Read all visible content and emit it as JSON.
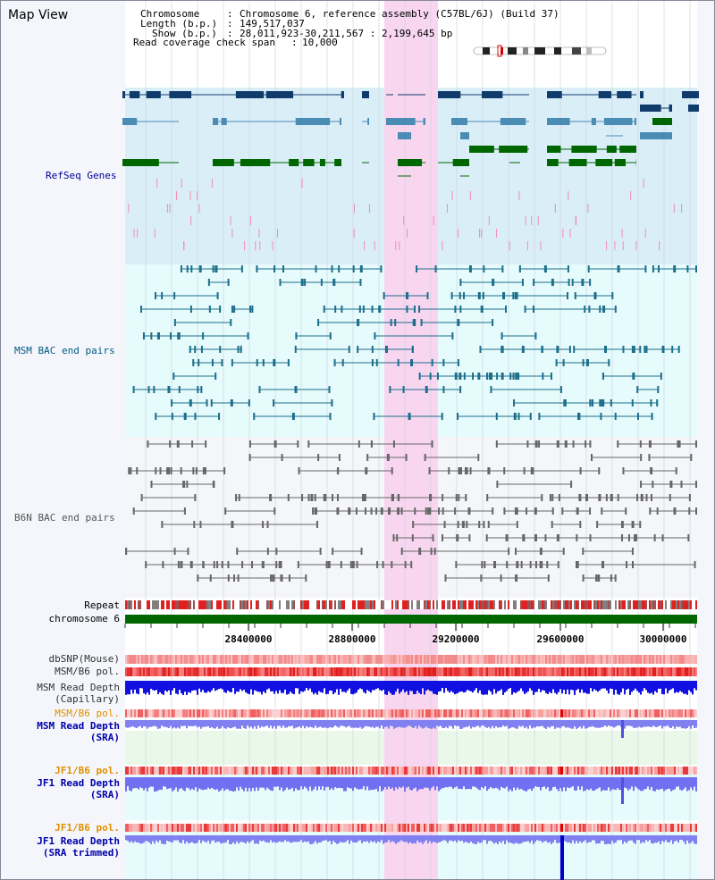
{
  "page": {
    "title": "Map View"
  },
  "header": {
    "chromosome_key": "Chromosome",
    "chromosome_value": "Chromosome 6, reference assembly (C57BL/6J) (Build 37)",
    "length_key": "Length (b.p.)",
    "length_value": "149,517,037",
    "show_key": "Show (b.p.)",
    "show_value": "28,011,923-30,211,567 : 2,199,645 bp",
    "span_key": "Read coverage check span",
    "span_value": "10,000"
  },
  "tracks": {
    "refseq": "RefSeq Genes",
    "msm_bac": "MSM BAC end pairs",
    "b6n_bac": "B6N BAC end pairs",
    "repeat": "Repeat",
    "chromosome": "chromosome 6"
  },
  "axis_ticks": [
    "28400000",
    "28800000",
    "29200000",
    "29600000",
    "30000000"
  ],
  "bottom_tracks": {
    "dbsnp": "dbSNP(Mouse)",
    "msm_b6_pol_1": "MSM/B6 pol.",
    "msm_depth_cap_1": "MSM Read Depth",
    "msm_depth_cap_2": "(Capillary)",
    "msm_b6_pol_2": "MSM/B6 pol.",
    "msm_depth_sra_1": "MSM Read Depth",
    "msm_depth_sra_2": "(SRA)",
    "jf1_pol_1": "JF1/B6 pol.",
    "jf1_depth_sra_1": "JF1 Read Depth",
    "jf1_depth_sra_2": "(SRA)",
    "jf1_pol_2": "JF1/B6 pol.",
    "jf1_depth_trim_1": "JF1 Read Depth",
    "jf1_depth_trim_2": "(SRA trimmed)"
  },
  "colors": {
    "refseq_bg": "#daeef8",
    "msm_bg": "#e6fbfb",
    "b6n_bg": "#f4f6fa",
    "highlight": "#f8d6f0",
    "refseq_label": "#000099",
    "msm_label": "#005a80",
    "b6n_label": "#555555",
    "orange_label": "#e09000",
    "blue_label": "#0000aa",
    "chromosome_bar": "#006600"
  }
}
